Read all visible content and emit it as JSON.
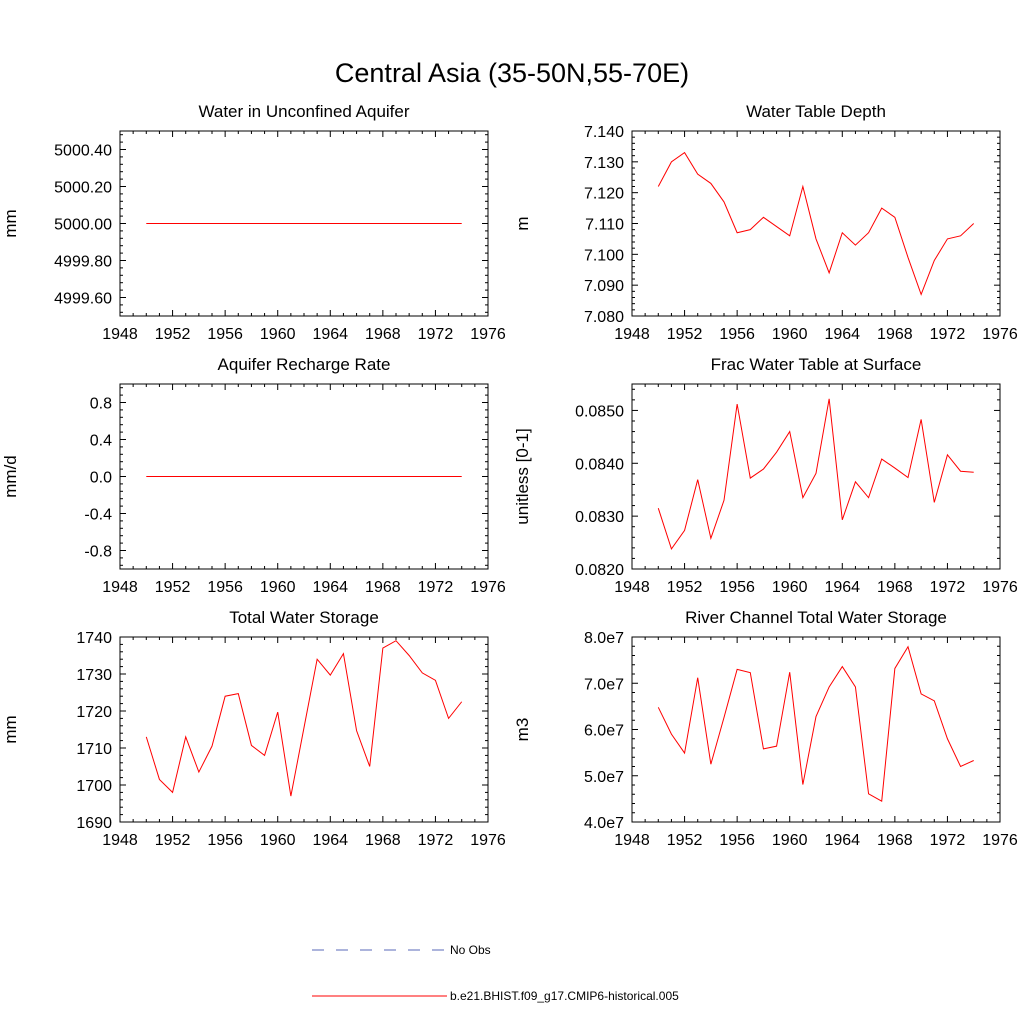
{
  "figure_title": "Central Asia (35-50N,55-70E)",
  "colors": {
    "model": "#ff0000",
    "obs": "#5a6ab8",
    "axis": "#000000"
  },
  "legend": {
    "placement": "bottom-center",
    "entries": [
      {
        "label": "No Obs",
        "style": "dashed",
        "color": "#5a6ab8"
      },
      {
        "label": "b.e21.BHIST.f09_g17.CMIP6-historical.005",
        "style": "solid",
        "color": "#ff0000"
      }
    ]
  },
  "chart_data": [
    {
      "type": "line",
      "title": "Water in Unconfined Aquifer",
      "ylabel": "mm",
      "xlim": [
        1948,
        1976
      ],
      "ylim": [
        4999.5,
        5000.5
      ],
      "xticks": [
        1948,
        1952,
        1956,
        1960,
        1964,
        1968,
        1972,
        1976
      ],
      "yticks": [
        4999.6,
        4999.8,
        5000.0,
        5000.2,
        5000.4
      ],
      "ytick_labels": [
        "4999.60",
        "4999.80",
        "5000.00",
        "5000.20",
        "5000.40"
      ],
      "x": [
        1950,
        1951,
        1952,
        1953,
        1954,
        1955,
        1956,
        1957,
        1958,
        1959,
        1960,
        1961,
        1962,
        1963,
        1964,
        1965,
        1966,
        1967,
        1968,
        1969,
        1970,
        1971,
        1972,
        1973,
        1974
      ],
      "series": [
        {
          "values": [
            5000,
            5000,
            5000,
            5000,
            5000,
            5000,
            5000,
            5000,
            5000,
            5000,
            5000,
            5000,
            5000,
            5000,
            5000,
            5000,
            5000,
            5000,
            5000,
            5000,
            5000,
            5000,
            5000,
            5000,
            5000
          ]
        }
      ]
    },
    {
      "type": "line",
      "title": "Water Table Depth",
      "ylabel": "m",
      "xlim": [
        1948,
        1976
      ],
      "ylim": [
        7.08,
        7.14
      ],
      "xticks": [
        1948,
        1952,
        1956,
        1960,
        1964,
        1968,
        1972,
        1976
      ],
      "yticks": [
        7.08,
        7.09,
        7.1,
        7.11,
        7.12,
        7.13,
        7.14
      ],
      "ytick_labels": [
        "7.080",
        "7.090",
        "7.100",
        "7.110",
        "7.120",
        "7.130",
        "7.140"
      ],
      "x": [
        1950,
        1951,
        1952,
        1953,
        1954,
        1955,
        1956,
        1957,
        1958,
        1959,
        1960,
        1961,
        1962,
        1963,
        1964,
        1965,
        1966,
        1967,
        1968,
        1969,
        1970,
        1971,
        1972,
        1973,
        1974
      ],
      "series": [
        {
          "values": [
            7.122,
            7.13,
            7.133,
            7.126,
            7.123,
            7.117,
            7.107,
            7.108,
            7.112,
            7.109,
            7.106,
            7.122,
            7.105,
            7.094,
            7.107,
            7.103,
            7.107,
            7.115,
            7.112,
            7.099,
            7.087,
            7.098,
            7.105,
            7.106,
            7.11
          ]
        }
      ]
    },
    {
      "type": "line",
      "title": "Aquifer Recharge Rate",
      "ylabel": "mm/d",
      "xlim": [
        1948,
        1976
      ],
      "ylim": [
        -1.0,
        1.0
      ],
      "xticks": [
        1948,
        1952,
        1956,
        1960,
        1964,
        1968,
        1972,
        1976
      ],
      "yticks": [
        -0.8,
        -0.4,
        0.0,
        0.4,
        0.8
      ],
      "ytick_labels": [
        "-0.8",
        "-0.4",
        "0.0",
        "0.4",
        "0.8"
      ],
      "x": [
        1950,
        1951,
        1952,
        1953,
        1954,
        1955,
        1956,
        1957,
        1958,
        1959,
        1960,
        1961,
        1962,
        1963,
        1964,
        1965,
        1966,
        1967,
        1968,
        1969,
        1970,
        1971,
        1972,
        1973,
        1974
      ],
      "series": [
        {
          "values": [
            0,
            0,
            0,
            0,
            0,
            0,
            0,
            0,
            0,
            0,
            0,
            0,
            0,
            0,
            0,
            0,
            0,
            0,
            0,
            0,
            0,
            0,
            0,
            0,
            0
          ]
        }
      ]
    },
    {
      "type": "line",
      "title": "Frac Water Table at Surface",
      "ylabel": "unitless [0-1]",
      "xlim": [
        1948,
        1976
      ],
      "ylim": [
        0.082,
        0.0855
      ],
      "xticks": [
        1948,
        1952,
        1956,
        1960,
        1964,
        1968,
        1972,
        1976
      ],
      "yticks": [
        0.082,
        0.083,
        0.084,
        0.085
      ],
      "ytick_labels": [
        "0.0820",
        "0.0830",
        "0.0840",
        "0.0850"
      ],
      "x": [
        1950,
        1951,
        1952,
        1953,
        1954,
        1955,
        1956,
        1957,
        1958,
        1959,
        1960,
        1961,
        1962,
        1963,
        1964,
        1965,
        1966,
        1967,
        1968,
        1969,
        1970,
        1971,
        1972,
        1973,
        1974
      ],
      "series": [
        {
          "values": [
            0.08315,
            0.08238,
            0.08273,
            0.08369,
            0.08258,
            0.0833,
            0.08512,
            0.08372,
            0.08389,
            0.08421,
            0.0846,
            0.08335,
            0.08381,
            0.08522,
            0.08293,
            0.08365,
            0.08335,
            0.08408,
            0.08391,
            0.08373,
            0.08483,
            0.08326,
            0.08416,
            0.08385,
            0.08383
          ]
        }
      ]
    },
    {
      "type": "line",
      "title": "Total Water Storage",
      "ylabel": "mm",
      "xlim": [
        1948,
        1976
      ],
      "ylim": [
        1690,
        1740
      ],
      "xticks": [
        1948,
        1952,
        1956,
        1960,
        1964,
        1968,
        1972,
        1976
      ],
      "yticks": [
        1690,
        1700,
        1710,
        1720,
        1730,
        1740
      ],
      "ytick_labels": [
        "1690",
        "1700",
        "1710",
        "1720",
        "1730",
        "1740"
      ],
      "x": [
        1950,
        1951,
        1952,
        1953,
        1954,
        1955,
        1956,
        1957,
        1958,
        1959,
        1960,
        1961,
        1962,
        1963,
        1964,
        1965,
        1966,
        1967,
        1968,
        1969,
        1970,
        1971,
        1972,
        1973,
        1974
      ],
      "series": [
        {
          "values": [
            1713,
            1701.5,
            1698,
            1713,
            1703.5,
            1710.5,
            1724,
            1724.7,
            1710.7,
            1708,
            1719.7,
            1697,
            1715.5,
            1734,
            1729.7,
            1735.5,
            1714.7,
            1705,
            1737,
            1739,
            1735,
            1730.3,
            1728.3,
            1718,
            1722.5
          ]
        }
      ]
    },
    {
      "type": "line",
      "title": "River Channel Total Water Storage",
      "ylabel": "m3",
      "xlim": [
        1948,
        1976
      ],
      "ylim": [
        40000000,
        80000000
      ],
      "xticks": [
        1948,
        1952,
        1956,
        1960,
        1964,
        1968,
        1972,
        1976
      ],
      "yticks": [
        40000000,
        50000000,
        60000000,
        70000000,
        80000000
      ],
      "ytick_labels": [
        "4.0e7",
        "5.0e7",
        "6.0e7",
        "7.0e7",
        "8.0e7"
      ],
      "x": [
        1950,
        1951,
        1952,
        1953,
        1954,
        1955,
        1956,
        1957,
        1958,
        1959,
        1960,
        1961,
        1962,
        1963,
        1964,
        1965,
        1966,
        1967,
        1968,
        1969,
        1970,
        1971,
        1972,
        1973,
        1974
      ],
      "series": [
        {
          "values": [
            64800000,
            59000000,
            54900000,
            71200000,
            52500000,
            62600000,
            73000000,
            72300000,
            55800000,
            56400000,
            72400000,
            48100000,
            62800000,
            69200000,
            73600000,
            69200000,
            46100000,
            44500000,
            73200000,
            77900000,
            67700000,
            66200000,
            58000000,
            52000000,
            53300000
          ]
        }
      ]
    }
  ]
}
